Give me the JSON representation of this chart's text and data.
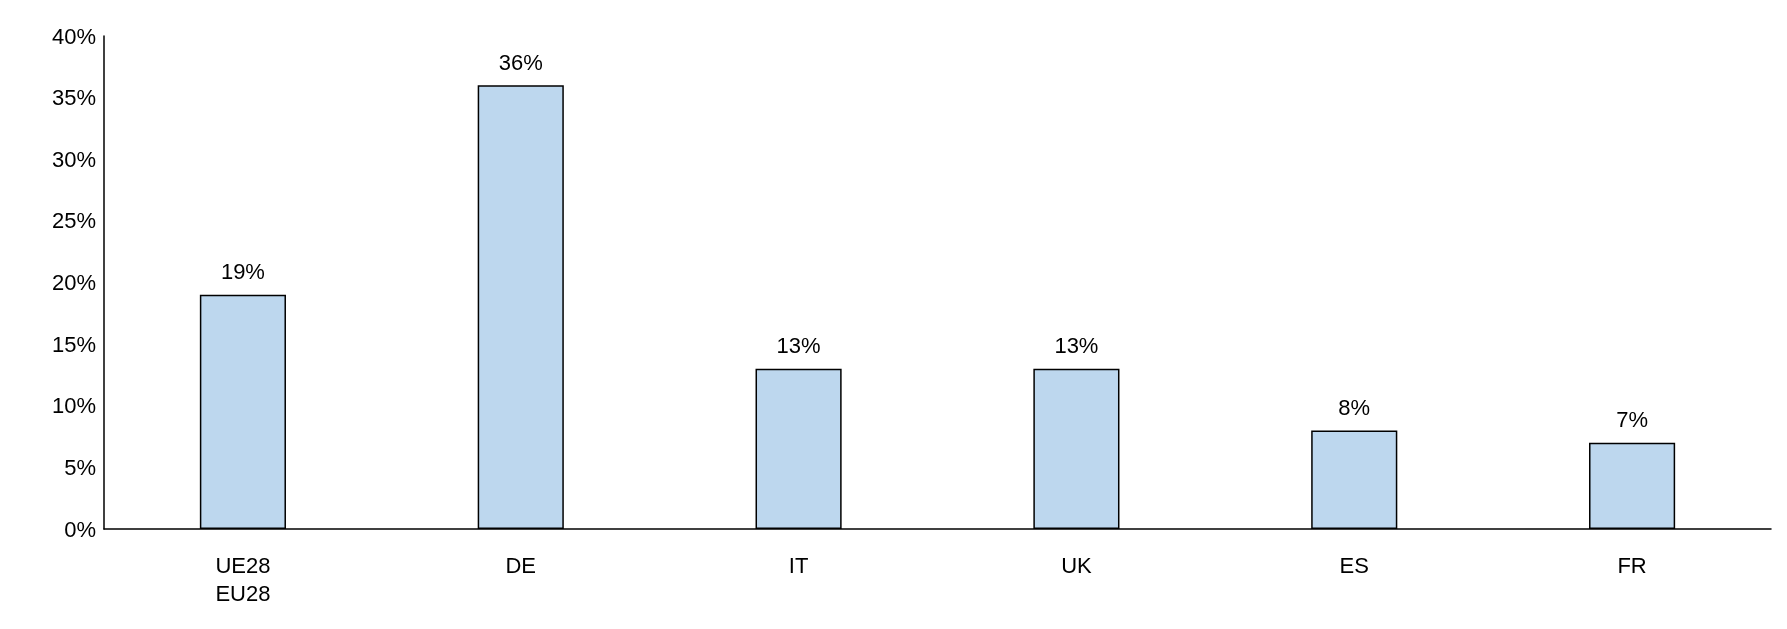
{
  "chart_data": {
    "type": "bar",
    "categories": [
      "UE28\nEU28",
      "DE",
      "IT",
      "UK",
      "ES",
      "FR"
    ],
    "values": [
      19,
      36,
      13,
      13,
      8,
      7
    ],
    "value_labels": [
      "19%",
      "36%",
      "13%",
      "13%",
      "8%",
      "7%"
    ],
    "color": "#bdd7ee",
    "ylim": [
      0,
      40
    ],
    "yticks": [
      {
        "value": 0,
        "label": "0%"
      },
      {
        "value": 5,
        "label": "5%"
      },
      {
        "value": 10,
        "label": "10%"
      },
      {
        "value": 15,
        "label": "15%"
      },
      {
        "value": 20,
        "label": "20%"
      },
      {
        "value": 25,
        "label": "25%"
      },
      {
        "value": 30,
        "label": "30%"
      },
      {
        "value": 35,
        "label": "35%"
      },
      {
        "value": 40,
        "label": "40%"
      }
    ],
    "grid": false
  }
}
